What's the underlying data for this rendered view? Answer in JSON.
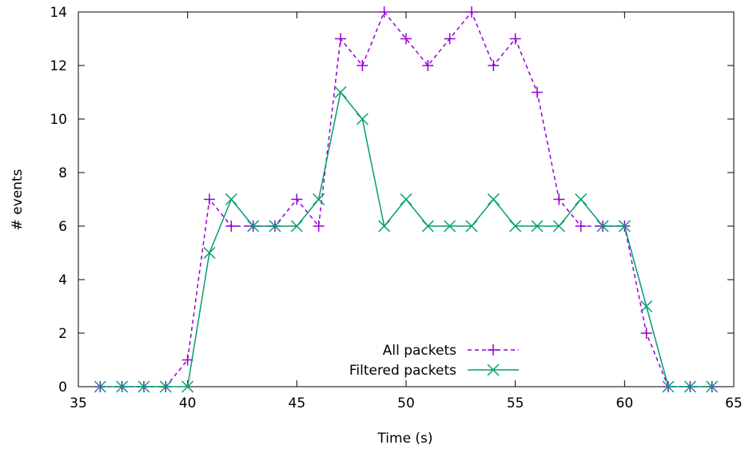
{
  "chart_data": {
    "type": "line",
    "xlabel": "Time (s)",
    "ylabel": "# events",
    "xlim": [
      35,
      65
    ],
    "ylim": [
      0,
      14
    ],
    "xticks": [
      35,
      40,
      45,
      50,
      55,
      60,
      65
    ],
    "yticks": [
      0,
      2,
      4,
      6,
      8,
      10,
      12,
      14
    ],
    "grid": false,
    "legend_position": "bottom-center",
    "x": [
      36,
      37,
      38,
      39,
      40,
      41,
      42,
      43,
      44,
      45,
      46,
      47,
      48,
      49,
      50,
      51,
      52,
      53,
      54,
      55,
      56,
      57,
      58,
      59,
      60,
      61,
      62,
      63,
      64
    ],
    "series": [
      {
        "name": "All packets",
        "color": "#9400d3",
        "line_style": "dashed",
        "marker": "plus",
        "values": [
          0,
          0,
          0,
          0,
          1,
          7,
          6,
          6,
          6,
          7,
          6,
          13,
          12,
          14,
          13,
          12,
          13,
          14,
          12,
          13,
          11,
          7,
          6,
          6,
          6,
          2,
          0,
          0,
          0
        ]
      },
      {
        "name": "Filtered packets",
        "color": "#009e73",
        "line_style": "solid",
        "marker": "cross",
        "values": [
          0,
          0,
          0,
          0,
          0,
          5,
          7,
          6,
          6,
          6,
          7,
          11,
          10,
          6,
          7,
          6,
          6,
          6,
          7,
          6,
          6,
          6,
          7,
          6,
          6,
          3,
          0,
          0,
          0
        ]
      }
    ]
  }
}
